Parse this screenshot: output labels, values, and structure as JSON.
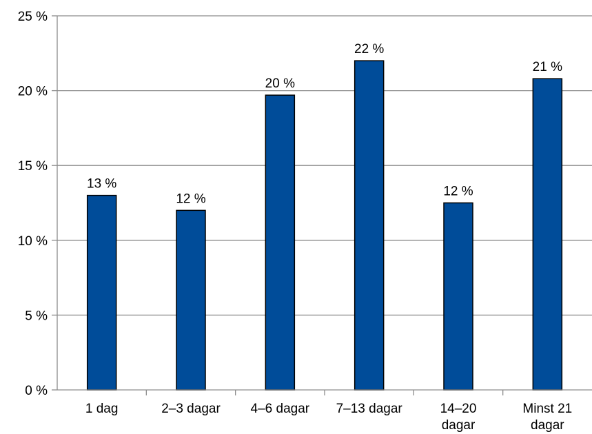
{
  "chart_data": {
    "type": "bar",
    "categories": [
      [
        "1 dag"
      ],
      [
        "2–3 dagar"
      ],
      [
        "4–6 dagar"
      ],
      [
        "7–13 dagar"
      ],
      [
        "14–20",
        "dagar"
      ],
      [
        "Minst 21",
        "dagar"
      ]
    ],
    "values": [
      13,
      12,
      19.7,
      22,
      12.5,
      20.8
    ],
    "data_labels": [
      "13 %",
      "12 %",
      "20 %",
      "22 %",
      "12 %",
      "21 %"
    ],
    "yticks": [
      0,
      5,
      10,
      15,
      20,
      25
    ],
    "ytick_labels": [
      "0 %",
      "5 %",
      "10 %",
      "15 %",
      "20 %",
      "25 %"
    ],
    "ylim": [
      0,
      25
    ],
    "grid": true,
    "legend": "none",
    "bar_color": "#004c99",
    "bar_stroke": "#000000",
    "grid_color": "#8c8c8c"
  }
}
